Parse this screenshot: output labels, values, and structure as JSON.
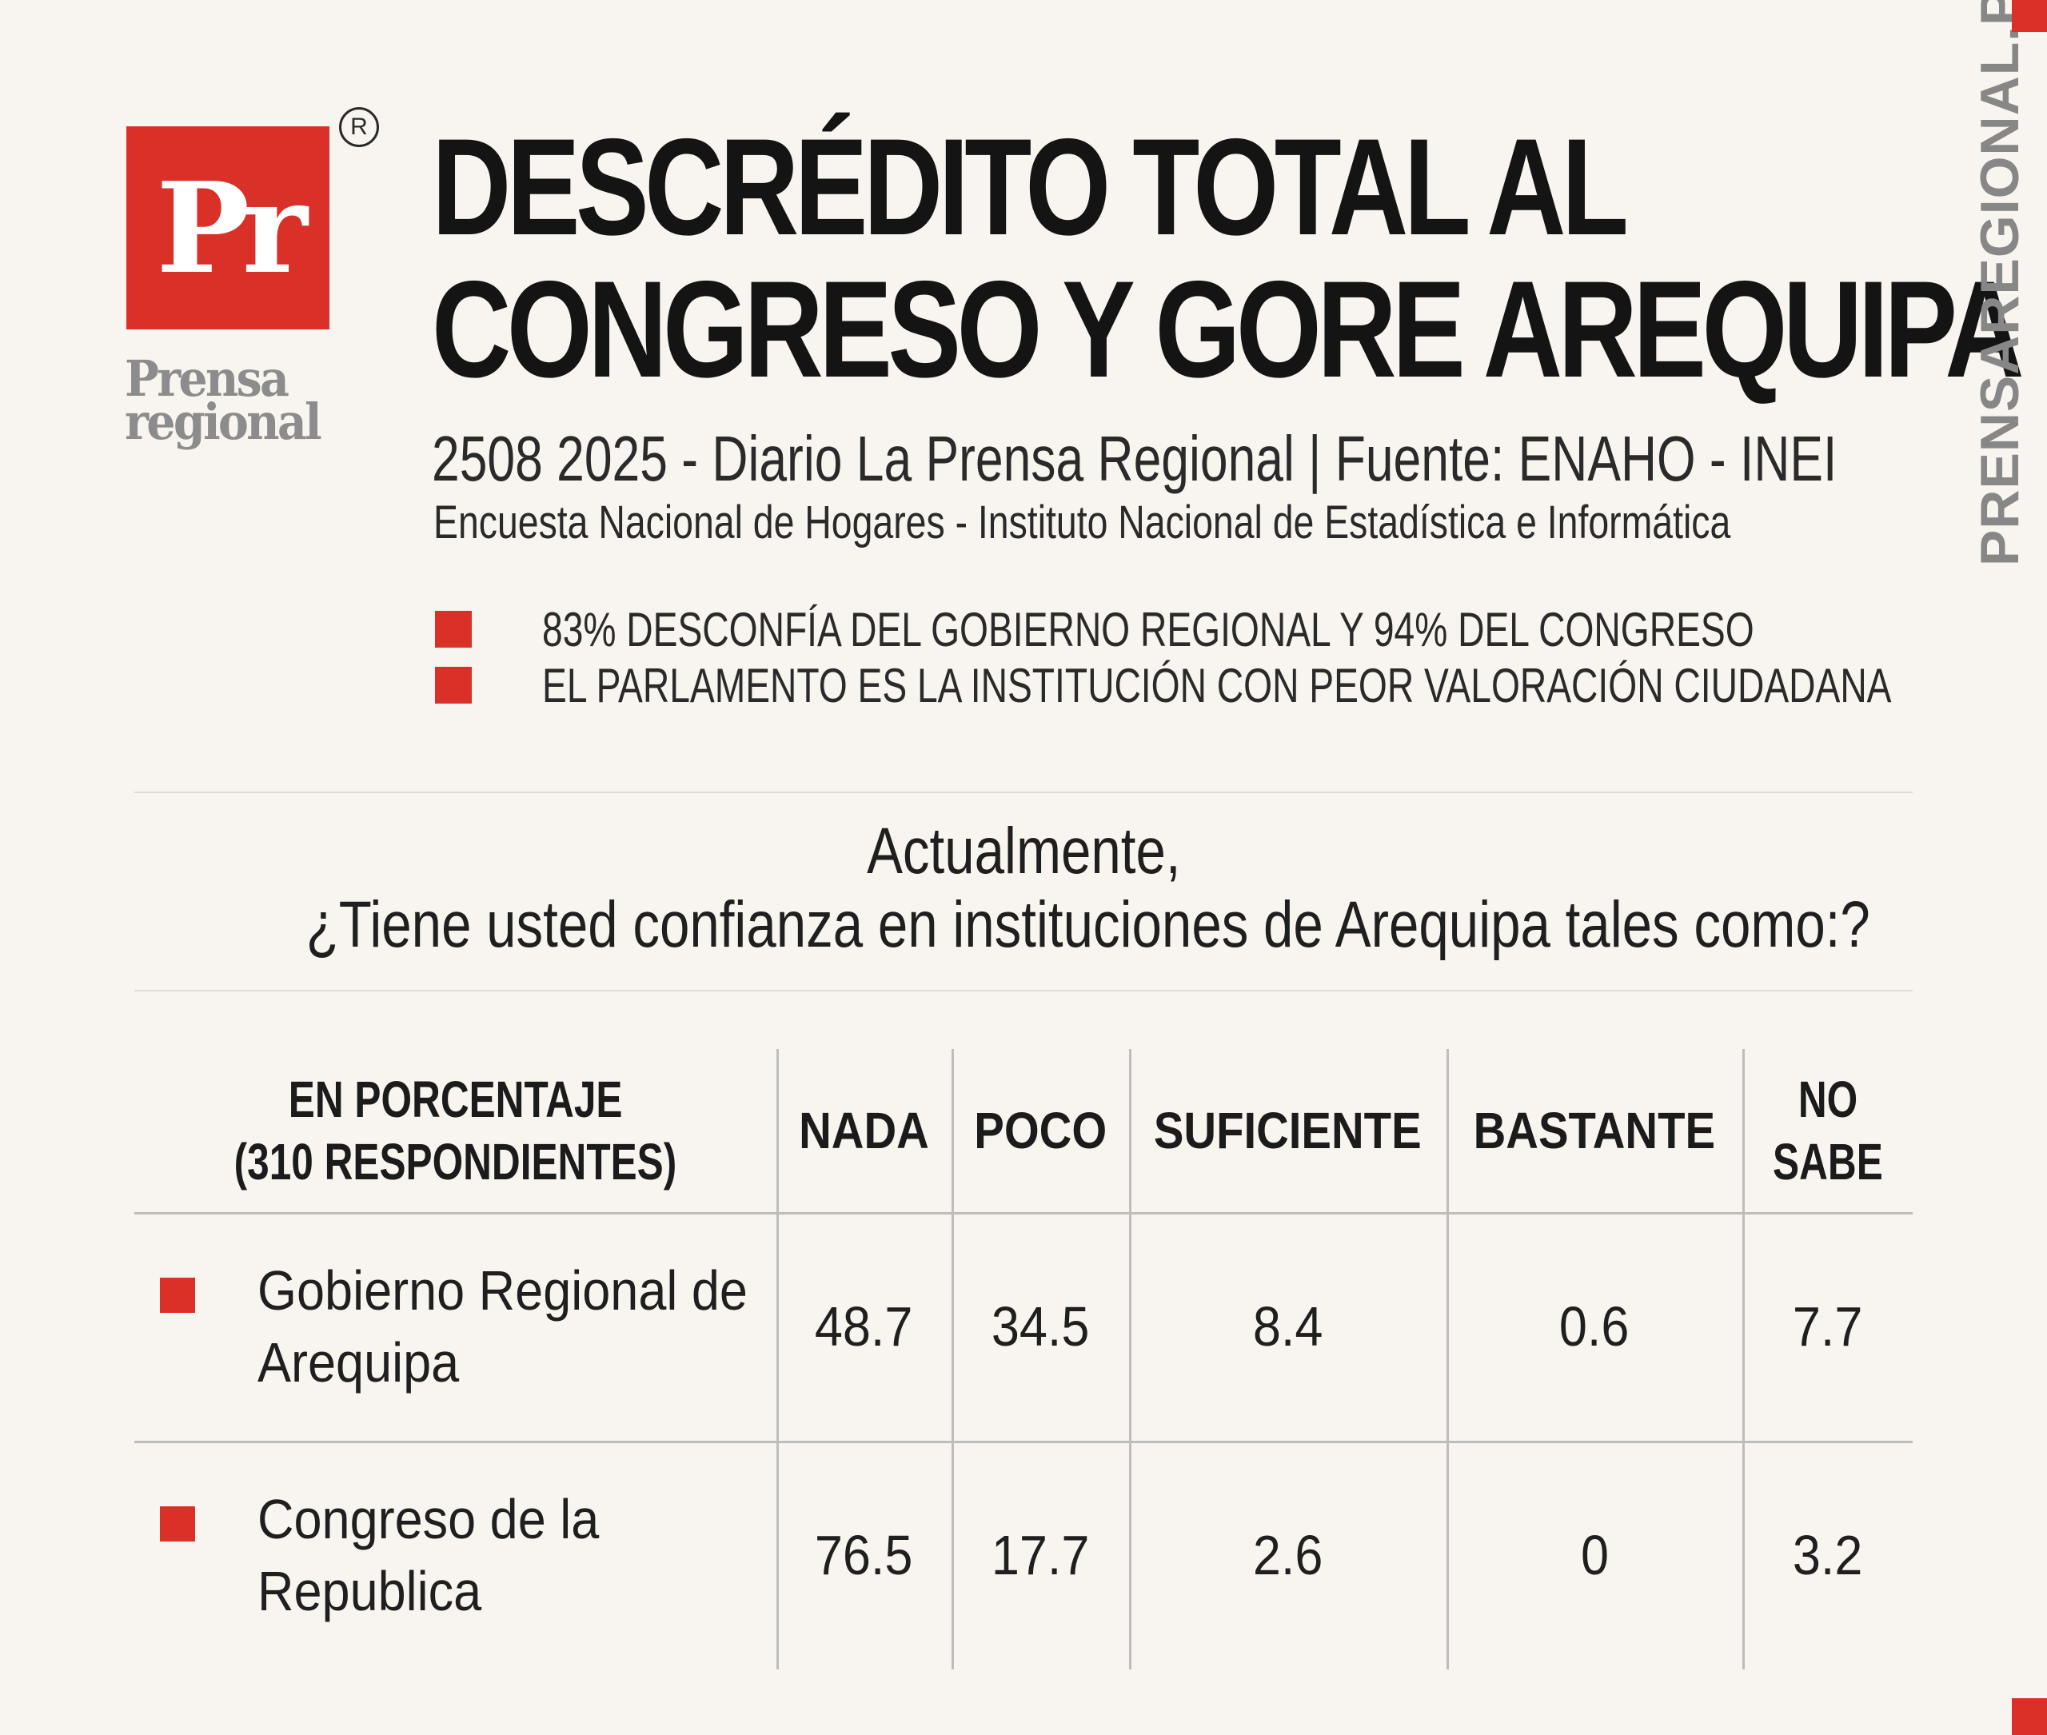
{
  "brand": {
    "logo_mark": "Pr",
    "registered_symbol": "R",
    "wordmark_line1": "Prensa",
    "wordmark_line2": "regional",
    "side_url": "PRENSAREGIONAL.PE",
    "accent_color": "#d93028"
  },
  "header": {
    "headline_line1": "DESCRÉDITO TOTAL AL",
    "headline_line2": "CONGRESO Y GORE AREQUIPA",
    "dateline": "2508 2025 - Diario La Prensa Regional | Fuente: ENAHO - INEI",
    "source_full": "Encuesta Nacional de Hogares - Instituto Nacional de Estadística e Informática"
  },
  "highlights": [
    "83% DESCONFÍA DEL GOBIERNO REGIONAL Y 94% DEL CONGRESO",
    "EL PARLAMENTO ES LA INSTITUCIÓN CON PEOR VALORACIÓN CIUDADANA"
  ],
  "question": {
    "line1": "Actualmente,",
    "line2": "¿Tiene usted confianza en instituciones de Arequipa tales como:?"
  },
  "table": {
    "label_header_line1": "EN PORCENTAJE",
    "label_header_line2": "(310 RESPONDIENTES)",
    "columns": [
      "NADA",
      "POCO",
      "SUFICIENTE",
      "BASTANTE"
    ],
    "last_column_line1": "NO",
    "last_column_line2": "SABE",
    "rows": [
      {
        "label_line1": "Gobierno Regional de",
        "label_line2": "Arequipa",
        "values": [
          "48.7",
          "34.5",
          "8.4",
          "0.6",
          "7.7"
        ]
      },
      {
        "label_line1": "Congreso de la",
        "label_line2": "Republica",
        "values": [
          "76.5",
          "17.7",
          "2.6",
          "0",
          "3.2"
        ]
      }
    ]
  }
}
